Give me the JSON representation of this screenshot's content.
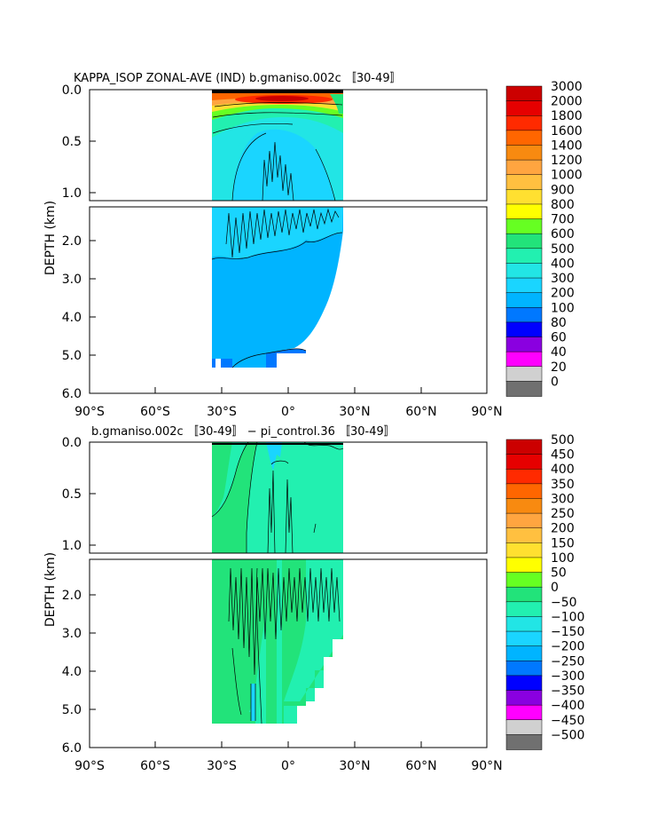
{
  "chart_data": [
    {
      "type": "heatmap",
      "title": "KAPPA_ISOP ZONAL-AVE (IND) b.gmaniso.002c 〚30-49〛",
      "ylabel": "DEPTH (km)",
      "xlabel": "",
      "x_ticks": [
        "90°S",
        "60°S",
        "30°S",
        "0°",
        "30°N",
        "60°N",
        "90°N"
      ],
      "y_ticks_upper": [
        "0.0",
        "0.5",
        "1.0"
      ],
      "y_ticks_lower": [
        "2.0",
        "3.0",
        "4.0",
        "5.0",
        "6.0"
      ],
      "x_range": [
        -90,
        90
      ],
      "depth_range_km": [
        0,
        6
      ],
      "data_lat_extent": [
        -34,
        26
      ],
      "colorbar_labels": [
        "3000",
        "2000",
        "1800",
        "1600",
        "1400",
        "1200",
        "1000",
        "900",
        "800",
        "700",
        "600",
        "500",
        "400",
        "300",
        "200",
        "100",
        "80",
        "60",
        "40",
        "20",
        "0"
      ],
      "colorbar_colors": [
        "#cc0000",
        "#e60000",
        "#ff2a00",
        "#ff6600",
        "#f88a10",
        "#ffa540",
        "#ffc040",
        "#ffe030",
        "#ffff00",
        "#66ff22",
        "#22e37a",
        "#22f0b0",
        "#22e5e5",
        "#1ad5ff",
        "#00b4ff",
        "#0078ff",
        "#0000ff",
        "#8a00e0",
        "#ff00ff",
        "#d0d0d0",
        "#707070"
      ],
      "dominant_values": {
        "surface_layer": "1400-3000",
        "thermocline": "500-900",
        "deep_ocean": "300-400",
        "abyss": "200-300"
      }
    },
    {
      "type": "heatmap",
      "title": "b.gmaniso.002c 〚30-49〛 − pi_control.36 〚30-49〛",
      "ylabel": "DEPTH (km)",
      "xlabel": "",
      "x_ticks": [
        "90°S",
        "60°S",
        "30°S",
        "0°",
        "30°N",
        "60°N",
        "90°N"
      ],
      "y_ticks_upper": [
        "0.0",
        "0.5",
        "1.0"
      ],
      "y_ticks_lower": [
        "2.0",
        "3.0",
        "4.0",
        "5.0",
        "6.0"
      ],
      "x_range": [
        -90,
        90
      ],
      "depth_range_km": [
        0,
        6
      ],
      "data_lat_extent": [
        -34,
        26
      ],
      "colorbar_labels": [
        "500",
        "450",
        "400",
        "350",
        "300",
        "250",
        "200",
        "150",
        "100",
        "50",
        "0",
        "−50",
        "−100",
        "−150",
        "−200",
        "−250",
        "−300",
        "−350",
        "−400",
        "−450",
        "−500"
      ],
      "colorbar_colors": [
        "#cc0000",
        "#e60000",
        "#ff2a00",
        "#ff6600",
        "#f88a10",
        "#ffa540",
        "#ffc040",
        "#ffe030",
        "#ffff00",
        "#66ff22",
        "#22e37a",
        "#22f0b0",
        "#22e5e5",
        "#1ad5ff",
        "#00b4ff",
        "#0078ff",
        "#0000ff",
        "#8a00e0",
        "#ff00ff",
        "#d0d0d0",
        "#707070"
      ],
      "dominant_values": {
        "upper_ocean": "0-50",
        "deep_south": "0-50",
        "deep_north": "-50-0"
      }
    }
  ]
}
